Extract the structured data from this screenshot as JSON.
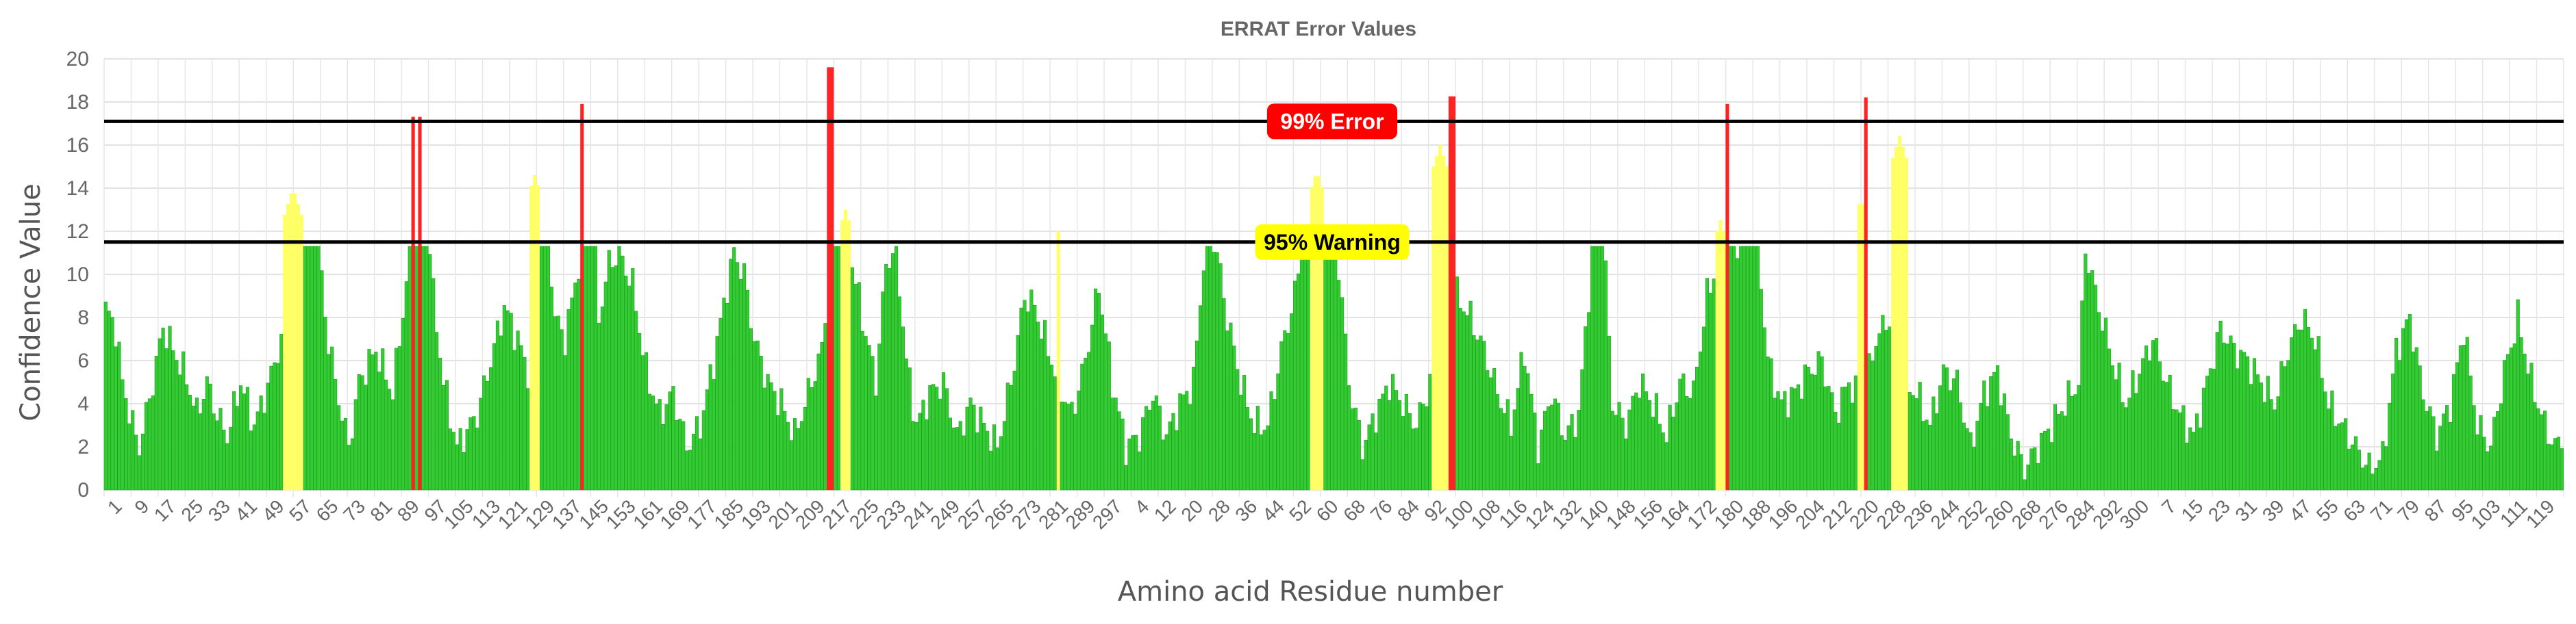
{
  "chart_data": {
    "type": "bar",
    "title": "ERRAT Error Values",
    "xlabel": "Amino acid Residue number",
    "ylabel": "Confidence Value",
    "ylim": [
      0,
      20
    ],
    "yticks": [
      0,
      2,
      4,
      6,
      8,
      10,
      12,
      14,
      16,
      18,
      20
    ],
    "grid": true,
    "thresholds": [
      {
        "label": "99% Error",
        "value": 17.1,
        "badge_color": "#ff0000",
        "text_color": "#ffffff"
      },
      {
        "label": "95% Warning",
        "value": 11.5,
        "badge_color": "#ffff00",
        "text_color": "#000000"
      }
    ],
    "colors": {
      "ok": "#33cc33",
      "ok_stroke": "#1f9e1f",
      "warning": "#ffff66",
      "error": "#ff2222",
      "threshold_line": "#000000"
    },
    "tick_labels": [
      "1",
      "9",
      "17",
      "25",
      "33",
      "41",
      "49",
      "57",
      "65",
      "73",
      "81",
      "89",
      "97",
      "105",
      "113",
      "121",
      "129",
      "137",
      "145",
      "153",
      "161",
      "169",
      "177",
      "185",
      "193",
      "201",
      "209",
      "217",
      "225",
      "233",
      "241",
      "249",
      "257",
      "265",
      "273",
      "281",
      "289",
      "297",
      "4",
      "12",
      "20",
      "28",
      "36",
      "44",
      "52",
      "60",
      "68",
      "76",
      "84",
      "92",
      "100",
      "108",
      "116",
      "124",
      "132",
      "140",
      "148",
      "156",
      "164",
      "172",
      "180",
      "188",
      "196",
      "204",
      "212",
      "220",
      "228",
      "236",
      "244",
      "252",
      "260",
      "268",
      "276",
      "284",
      "292",
      "300",
      "7",
      "15",
      "23",
      "31",
      "39",
      "47",
      "55",
      "63",
      "71",
      "79",
      "87",
      "95",
      "103",
      "111",
      "119"
    ],
    "bar_count": 728,
    "profile_knots": [
      [
        0,
        8.4
      ],
      [
        3,
        7.5
      ],
      [
        5,
        5.0
      ],
      [
        8,
        3.0
      ],
      [
        10,
        2.0
      ],
      [
        14,
        5.0
      ],
      [
        17,
        7.6
      ],
      [
        20,
        6.5
      ],
      [
        24,
        5.2
      ],
      [
        27,
        3.5
      ],
      [
        30,
        5.0
      ],
      [
        33,
        3.5
      ],
      [
        36,
        2.5
      ],
      [
        40,
        5.0
      ],
      [
        44,
        3.0
      ],
      [
        48,
        4.8
      ],
      [
        52,
        7.0
      ],
      [
        56,
        10.5
      ],
      [
        58,
        12.0
      ],
      [
        60,
        13.5
      ],
      [
        63,
        12.0
      ],
      [
        65,
        8.0
      ],
      [
        68,
        5.0
      ],
      [
        72,
        2.0
      ],
      [
        75,
        5.0
      ],
      [
        80,
        6.5
      ],
      [
        85,
        4.5
      ],
      [
        90,
        10.8
      ],
      [
        92,
        15.0
      ],
      [
        95,
        13.5
      ],
      [
        97,
        9.0
      ],
      [
        100,
        5.0
      ],
      [
        104,
        2.0
      ],
      [
        110,
        3.5
      ],
      [
        114,
        6.0
      ],
      [
        118,
        8.5
      ],
      [
        122,
        7.0
      ],
      [
        126,
        5.0
      ],
      [
        130,
        14.0
      ],
      [
        133,
        8.0
      ],
      [
        136,
        7.0
      ],
      [
        140,
        10.5
      ],
      [
        143,
        17.0
      ],
      [
        146,
        8.0
      ],
      [
        149,
        10.5
      ],
      [
        152,
        11.0
      ],
      [
        156,
        9.5
      ],
      [
        160,
        5.5
      ],
      [
        164,
        3.5
      ],
      [
        168,
        4.5
      ],
      [
        172,
        2.0
      ],
      [
        176,
        3.0
      ],
      [
        180,
        6.0
      ],
      [
        184,
        9.5
      ],
      [
        186,
        11.0
      ],
      [
        189,
        10.0
      ],
      [
        192,
        7.0
      ],
      [
        196,
        5.0
      ],
      [
        200,
        4.0
      ],
      [
        204,
        2.5
      ],
      [
        208,
        4.5
      ],
      [
        212,
        6.5
      ],
      [
        215,
        11.0
      ],
      [
        218,
        13.0
      ],
      [
        221,
        10.5
      ],
      [
        224,
        8.0
      ],
      [
        228,
        5.0
      ],
      [
        231,
        10.5
      ],
      [
        234,
        11.2
      ],
      [
        237,
        6.0
      ],
      [
        240,
        3.0
      ],
      [
        244,
        4.5
      ],
      [
        248,
        5.0
      ],
      [
        252,
        2.5
      ],
      [
        256,
        4.0
      ],
      [
        260,
        3.0
      ],
      [
        264,
        2.0
      ],
      [
        268,
        5.0
      ],
      [
        272,
        9.0
      ],
      [
        275,
        8.5
      ],
      [
        278,
        7.0
      ],
      [
        282,
        5.0
      ],
      [
        286,
        3.5
      ],
      [
        290,
        6.0
      ],
      [
        294,
        9.5
      ],
      [
        298,
        5.0
      ],
      [
        302,
        2.0
      ],
      [
        306,
        2.5
      ],
      [
        310,
        4.5
      ],
      [
        314,
        2.5
      ],
      [
        318,
        4.0
      ],
      [
        322,
        5.0
      ],
      [
        326,
        12.5
      ],
      [
        329,
        11.0
      ],
      [
        332,
        8.0
      ],
      [
        336,
        5.0
      ],
      [
        340,
        3.0
      ],
      [
        344,
        3.0
      ],
      [
        348,
        6.5
      ],
      [
        352,
        9.0
      ],
      [
        356,
        14.0
      ],
      [
        359,
        17.0
      ],
      [
        362,
        15.0
      ],
      [
        365,
        10.5
      ],
      [
        368,
        5.0
      ],
      [
        372,
        2.0
      ],
      [
        376,
        3.5
      ],
      [
        380,
        5.0
      ],
      [
        384,
        4.0
      ],
      [
        388,
        3.0
      ],
      [
        392,
        5.0
      ],
      [
        396,
        8.5
      ],
      [
        400,
        9.0
      ],
      [
        404,
        8.0
      ],
      [
        408,
        6.5
      ],
      [
        412,
        4.5
      ],
      [
        416,
        3.0
      ],
      [
        420,
        6.5
      ],
      [
        424,
        2.0
      ],
      [
        428,
        4.5
      ],
      [
        432,
        2.5
      ],
      [
        436,
        3.5
      ],
      [
        440,
        11.0
      ],
      [
        442,
        16.0
      ],
      [
        446,
        4.0
      ],
      [
        450,
        3.0
      ],
      [
        454,
        5.0
      ],
      [
        458,
        4.0
      ],
      [
        462,
        2.5
      ],
      [
        466,
        5.0
      ],
      [
        470,
        4.5
      ],
      [
        474,
        9.0
      ],
      [
        478,
        11.0
      ],
      [
        480,
        12.5
      ],
      [
        483,
        11.5
      ],
      [
        486,
        16.0
      ],
      [
        489,
        11.5
      ],
      [
        492,
        6.0
      ],
      [
        496,
        4.0
      ],
      [
        500,
        4.5
      ],
      [
        504,
        5.5
      ],
      [
        508,
        6.0
      ],
      [
        512,
        3.5
      ],
      [
        516,
        5.0
      ],
      [
        520,
        4.0
      ],
      [
        524,
        7.0
      ],
      [
        528,
        8.0
      ],
      [
        532,
        5.0
      ],
      [
        536,
        4.5
      ],
      [
        540,
        3.0
      ],
      [
        544,
        5.5
      ],
      [
        548,
        5.0
      ],
      [
        552,
        2.0
      ],
      [
        556,
        4.5
      ],
      [
        560,
        5.5
      ],
      [
        564,
        2.5
      ],
      [
        568,
        1.0
      ],
      [
        572,
        2.0
      ],
      [
        576,
        3.0
      ],
      [
        580,
        4.0
      ],
      [
        584,
        5.0
      ],
      [
        586,
        11.2
      ],
      [
        590,
        8.5
      ],
      [
        594,
        6.0
      ],
      [
        598,
        4.0
      ],
      [
        602,
        5.5
      ],
      [
        606,
        7.0
      ],
      [
        610,
        5.0
      ],
      [
        614,
        3.5
      ],
      [
        618,
        2.5
      ],
      [
        622,
        5.0
      ],
      [
        626,
        7.5
      ],
      [
        630,
        6.5
      ],
      [
        634,
        6.0
      ],
      [
        638,
        5.0
      ],
      [
        642,
        4.0
      ],
      [
        646,
        6.5
      ],
      [
        650,
        8.0
      ],
      [
        654,
        7.0
      ],
      [
        658,
        4.0
      ],
      [
        662,
        3.0
      ],
      [
        666,
        2.0
      ],
      [
        670,
        1.0
      ],
      [
        674,
        1.5
      ],
      [
        678,
        6.5
      ],
      [
        682,
        8.0
      ],
      [
        686,
        4.5
      ],
      [
        690,
        2.5
      ],
      [
        694,
        4.0
      ],
      [
        698,
        7.5
      ],
      [
        702,
        3.0
      ],
      [
        706,
        2.0
      ],
      [
        710,
        5.5
      ],
      [
        714,
        8.0
      ],
      [
        718,
        5.0
      ],
      [
        722,
        3.0
      ],
      [
        725,
        2.0
      ],
      [
        727,
        2.4
      ]
    ],
    "highlights": [
      {
        "from": 53,
        "to": 58,
        "value": 14.0,
        "status": "warning"
      },
      {
        "from": 91,
        "to": 91,
        "value": 17.3,
        "status": "error"
      },
      {
        "from": 93,
        "to": 93,
        "value": 17.3,
        "status": "error"
      },
      {
        "from": 126,
        "to": 128,
        "value": 14.6,
        "status": "warning"
      },
      {
        "from": 141,
        "to": 141,
        "value": 17.9,
        "status": "error"
      },
      {
        "from": 214,
        "to": 214,
        "value": 19.6,
        "status": "error"
      },
      {
        "from": 215,
        "to": 215,
        "value": 19.6,
        "status": "error"
      },
      {
        "from": 218,
        "to": 220,
        "value": 13.0,
        "status": "warning"
      },
      {
        "from": 282,
        "to": 282,
        "value": 12.0,
        "status": "warning"
      },
      {
        "from": 357,
        "to": 360,
        "value": 14.8,
        "status": "warning"
      },
      {
        "from": 393,
        "to": 397,
        "value": 16.0,
        "status": "warning"
      },
      {
        "from": 398,
        "to": 399,
        "value": 18.5,
        "status": "error"
      },
      {
        "from": 477,
        "to": 479,
        "value": 12.5,
        "status": "warning"
      },
      {
        "from": 480,
        "to": 480,
        "value": 17.9,
        "status": "error"
      },
      {
        "from": 519,
        "to": 520,
        "value": 13.5,
        "status": "warning"
      },
      {
        "from": 521,
        "to": 521,
        "value": 18.2,
        "status": "error"
      },
      {
        "from": 529,
        "to": 533,
        "value": 16.4,
        "status": "warning"
      }
    ]
  }
}
